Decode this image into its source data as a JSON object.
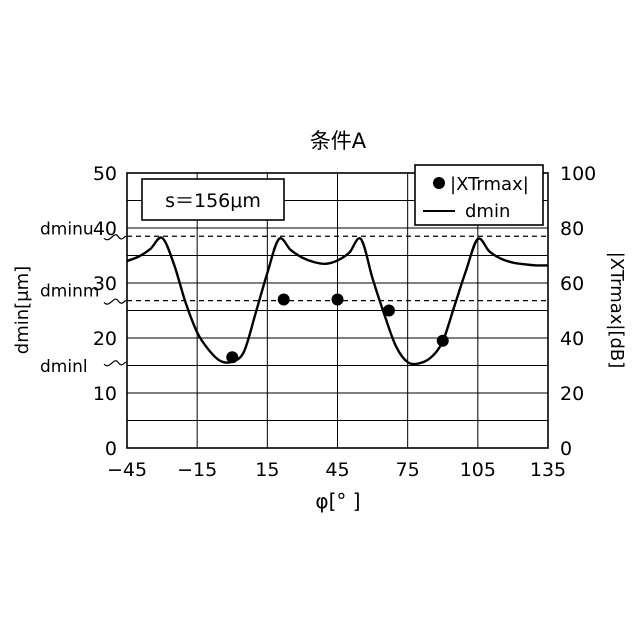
{
  "chart_data": {
    "type": "line",
    "title": "条件A",
    "xlabel": "φ[°  ]",
    "ylabel_left": "dmin[μm]",
    "ylabel_right": "|XTrmax|[dB]",
    "xlim": [
      -45,
      135
    ],
    "ylim_left": [
      0,
      50
    ],
    "ylim_right": [
      0,
      100
    ],
    "x_ticks": [
      -45,
      -15,
      15,
      45,
      75,
      105,
      135
    ],
    "x_tick_labels": [
      "−45",
      "−15",
      "15",
      "45",
      "75",
      "105",
      "135"
    ],
    "y_left_ticks": [
      0,
      10,
      20,
      30,
      40,
      50
    ],
    "y_left_tick_labels": [
      "0",
      "10",
      "20",
      "30",
      "40",
      "50"
    ],
    "y_right_ticks": [
      0,
      20,
      40,
      60,
      80,
      100
    ],
    "y_right_tick_labels": [
      "0",
      "20",
      "40",
      "60",
      "80",
      "100"
    ],
    "grid": true,
    "annotation_box": "s＝156μm",
    "legend": {
      "placement": "top-right",
      "entries": [
        "|XTrmax|",
        "dmin"
      ]
    },
    "reference_lines": [
      {
        "label": "dminu",
        "y": 38.5
      },
      {
        "label": "dminm",
        "y": 26.8
      }
    ],
    "side_labels": [
      {
        "label": "dminu",
        "y": 38.5
      },
      {
        "label": "dminm",
        "y": 26.8
      },
      {
        "label": "dminl",
        "y": 15.6
      }
    ],
    "series": [
      {
        "name": "dmin",
        "style": "line",
        "x": [
          -45,
          -40,
          -35,
          -30,
          -25,
          -20,
          -15,
          -10,
          -5,
          0,
          5,
          10,
          15,
          20,
          25,
          30,
          35,
          40,
          45,
          50,
          55,
          60,
          65,
          70,
          75,
          80,
          85,
          90,
          95,
          100,
          105,
          110,
          115,
          120,
          125,
          130,
          135
        ],
        "y": [
          34.0,
          34.8,
          36.2,
          38.2,
          33.5,
          26.5,
          21.0,
          17.8,
          15.8,
          15.7,
          17.5,
          24.5,
          31.8,
          38.0,
          36.0,
          34.6,
          33.8,
          33.5,
          34.1,
          35.5,
          38.0,
          30.8,
          24.3,
          18.5,
          15.6,
          15.4,
          16.5,
          19.4,
          25.8,
          32.3,
          38.0,
          35.7,
          34.4,
          33.7,
          33.4,
          33.2,
          33.2
        ]
      },
      {
        "name": "|XTrmax|",
        "style": "scatter",
        "x": [
          0,
          22,
          45,
          67,
          90
        ],
        "y": [
          33,
          54,
          54,
          50,
          39
        ]
      }
    ]
  }
}
